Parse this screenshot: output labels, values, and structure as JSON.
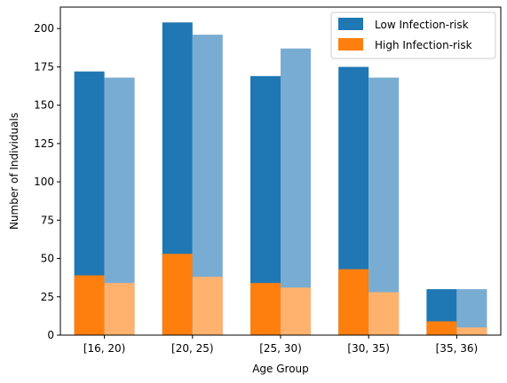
{
  "chart_data": {
    "type": "bar",
    "stacked": true,
    "categories": [
      "[16, 20)",
      "[20, 25)",
      "[25, 30)",
      "[30, 35)",
      "[35, 36)"
    ],
    "bars_per_category": 2,
    "series": [
      {
        "name": "Low Infection-risk",
        "bar": 1,
        "totals": [
          172,
          204,
          169,
          175,
          30
        ],
        "color": "#1f77b4"
      },
      {
        "name": "High Infection-risk",
        "bar": 1,
        "values": [
          39,
          53,
          34,
          43,
          9
        ],
        "color": "#ff7f0e"
      },
      {
        "name": "",
        "bar": 2,
        "totals": [
          168,
          196,
          187,
          168,
          30
        ],
        "color": "#79acd2"
      },
      {
        "name": "",
        "bar": 2,
        "values": [
          34,
          38,
          31,
          28,
          5
        ],
        "color": "#ffb26e"
      }
    ],
    "title": "",
    "xlabel": "Age Group",
    "ylabel": "Number of Individuals",
    "ylim": [
      0,
      214
    ],
    "yticks": [
      0,
      25,
      50,
      75,
      100,
      125,
      150,
      175,
      200
    ],
    "grid": false,
    "legend": {
      "placement": "top-right",
      "entries": [
        {
          "label": "Low Infection-risk",
          "color": "#1f77b4"
        },
        {
          "label": "High Infection-risk",
          "color": "#ff7f0e"
        }
      ]
    }
  }
}
